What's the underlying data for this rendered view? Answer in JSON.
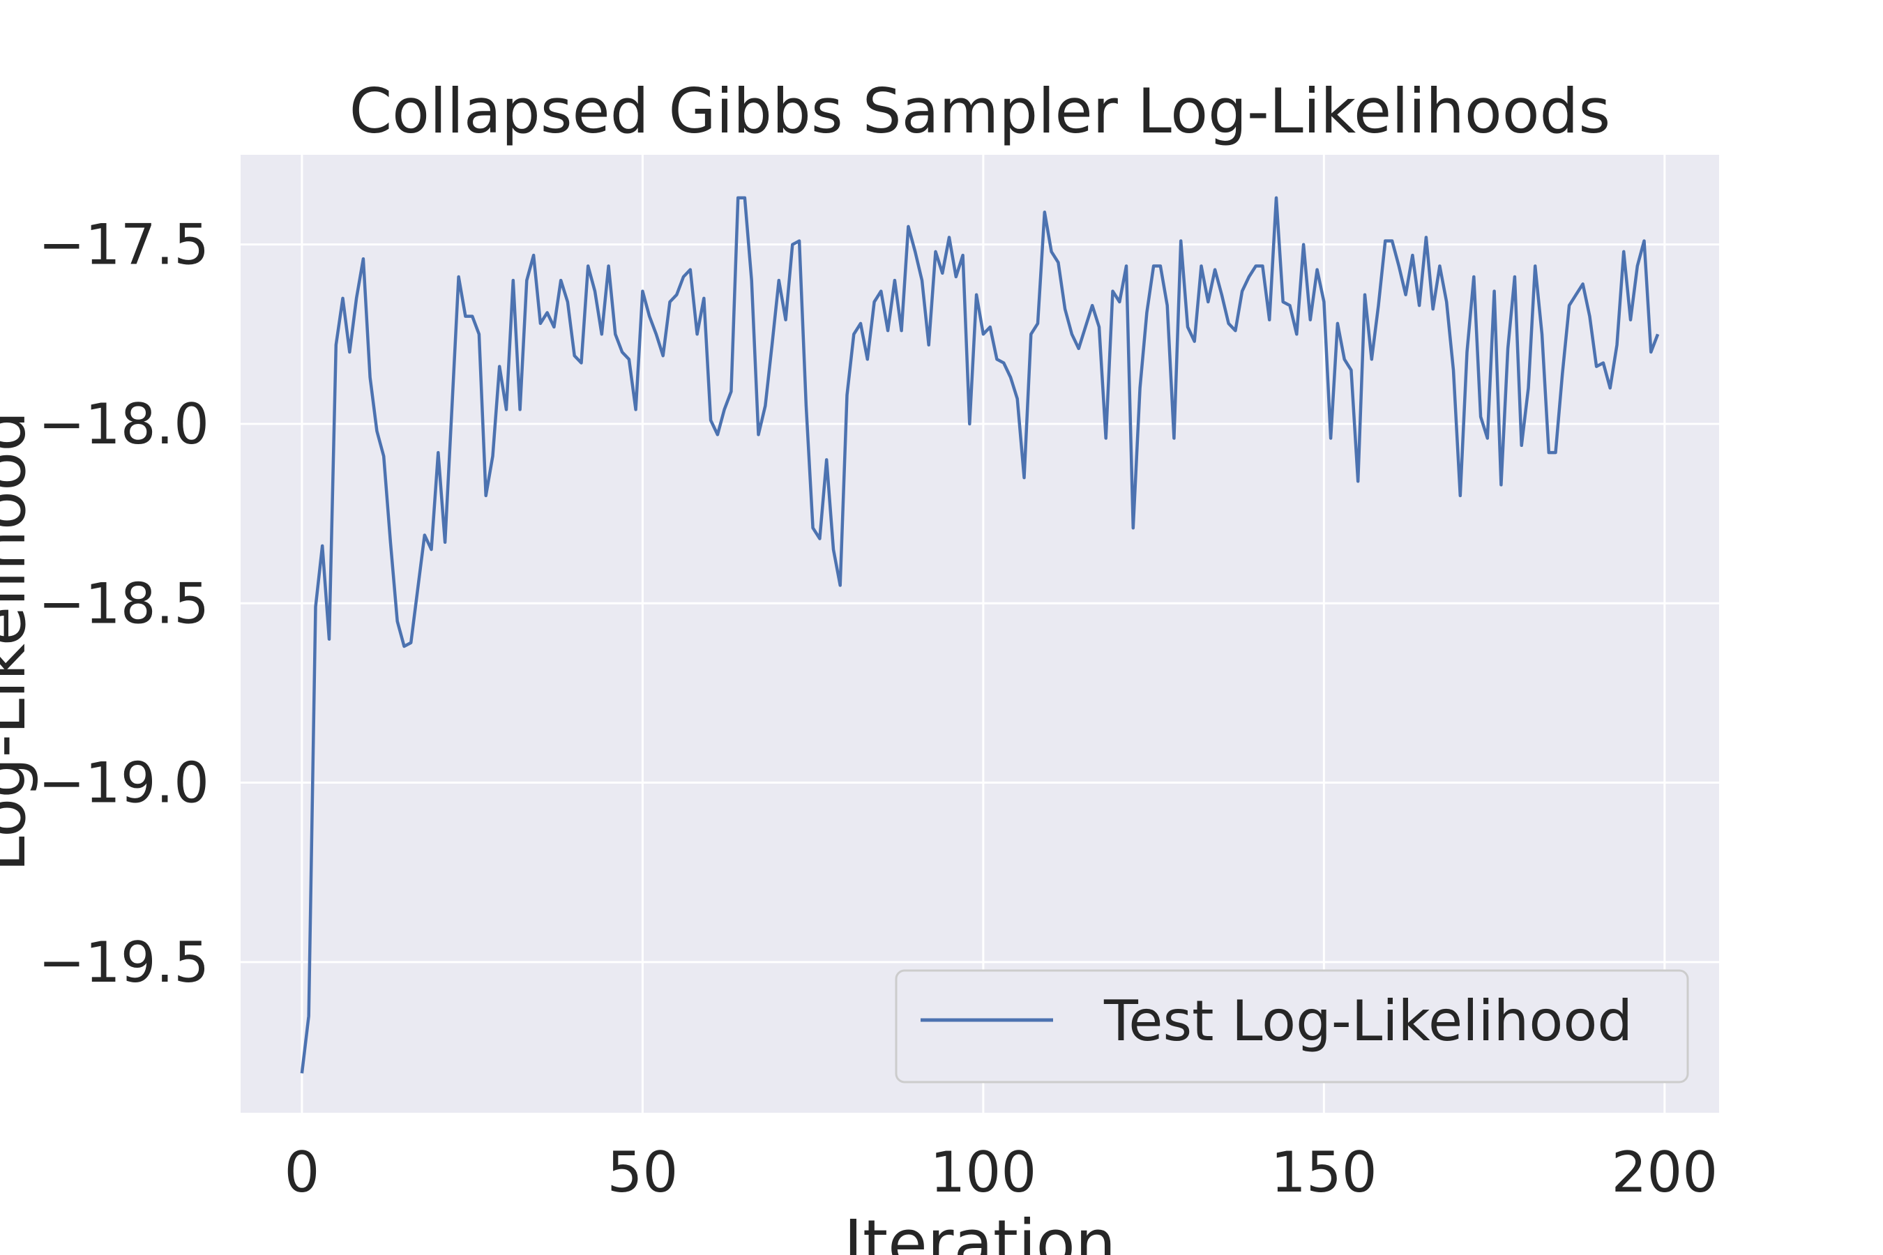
{
  "chart_data": {
    "type": "line",
    "title": "Collapsed Gibbs Sampler Log-Likelihoods",
    "xlabel": "Iteration",
    "ylabel": "Log-Likelihood",
    "xlim": [
      -9,
      208
    ],
    "ylim": [
      -19.92,
      -17.25
    ],
    "xticks": [
      0,
      50,
      100,
      150,
      200
    ],
    "xtick_labels": [
      "0",
      "50",
      "100",
      "150",
      "200"
    ],
    "yticks": [
      -17.5,
      -18.0,
      -18.5,
      -19.0,
      -19.5
    ],
    "ytick_labels": [
      "−17.5",
      "−18.0",
      "−18.5",
      "−19.0",
      "−19.5"
    ],
    "grid": true,
    "legend_position": "lower-right",
    "colors": {
      "background": "#eaeaf2",
      "grid": "#ffffff",
      "series": "#4c72b0",
      "text": "#262626"
    },
    "series": [
      {
        "name": "Test Log-Likelihood",
        "x_start": 0,
        "x_step": 1,
        "values": [
          -19.81,
          -19.65,
          -18.51,
          -18.34,
          -18.6,
          -17.78,
          -17.65,
          -17.8,
          -17.65,
          -17.54,
          -17.87,
          -18.02,
          -18.09,
          -18.33,
          -18.55,
          -18.62,
          -18.61,
          -18.46,
          -18.31,
          -18.35,
          -18.08,
          -18.33,
          -17.96,
          -17.59,
          -17.7,
          -17.7,
          -17.75,
          -18.2,
          -18.09,
          -17.84,
          -17.96,
          -17.6,
          -17.96,
          -17.6,
          -17.53,
          -17.72,
          -17.69,
          -17.73,
          -17.6,
          -17.66,
          -17.81,
          -17.83,
          -17.56,
          -17.63,
          -17.75,
          -17.56,
          -17.75,
          -17.8,
          -17.82,
          -17.96,
          -17.63,
          -17.7,
          -17.75,
          -17.81,
          -17.66,
          -17.64,
          -17.59,
          -17.57,
          -17.75,
          -17.65,
          -17.99,
          -18.03,
          -17.96,
          -17.91,
          -17.37,
          -17.37,
          -17.6,
          -18.03,
          -17.95,
          -17.78,
          -17.6,
          -17.71,
          -17.5,
          -17.49,
          -17.95,
          -18.29,
          -18.32,
          -18.1,
          -18.35,
          -18.45,
          -17.92,
          -17.75,
          -17.72,
          -17.82,
          -17.66,
          -17.63,
          -17.74,
          -17.6,
          -17.74,
          -17.45,
          -17.52,
          -17.6,
          -17.78,
          -17.52,
          -17.58,
          -17.48,
          -17.59,
          -17.53,
          -18.0,
          -17.64,
          -17.75,
          -17.73,
          -17.82,
          -17.83,
          -17.87,
          -17.93,
          -18.15,
          -17.75,
          -17.72,
          -17.41,
          -17.52,
          -17.55,
          -17.68,
          -17.75,
          -17.79,
          -17.73,
          -17.67,
          -17.73,
          -18.04,
          -17.63,
          -17.66,
          -17.56,
          -18.29,
          -17.9,
          -17.69,
          -17.56,
          -17.56,
          -17.67,
          -18.04,
          -17.49,
          -17.73,
          -17.77,
          -17.56,
          -17.66,
          -17.57,
          -17.64,
          -17.72,
          -17.74,
          -17.63,
          -17.59,
          -17.56,
          -17.56,
          -17.71,
          -17.37,
          -17.66,
          -17.67,
          -17.75,
          -17.5,
          -17.71,
          -17.57,
          -17.66,
          -18.04,
          -17.72,
          -17.82,
          -17.85,
          -18.16,
          -17.64,
          -17.82,
          -17.67,
          -17.49,
          -17.49,
          -17.56,
          -17.64,
          -17.53,
          -17.67,
          -17.48,
          -17.68,
          -17.56,
          -17.66,
          -17.85,
          -18.2,
          -17.8,
          -17.59,
          -17.98,
          -18.04,
          -17.63,
          -18.17,
          -17.79,
          -17.59,
          -18.06,
          -17.9,
          -17.56,
          -17.75,
          -18.08,
          -18.08,
          -17.86,
          -17.67,
          -17.64,
          -17.61,
          -17.7,
          -17.84,
          -17.83,
          -17.9,
          -17.78,
          -17.52,
          -17.71,
          -17.56,
          -17.49,
          -17.8,
          -17.75
        ]
      }
    ]
  }
}
